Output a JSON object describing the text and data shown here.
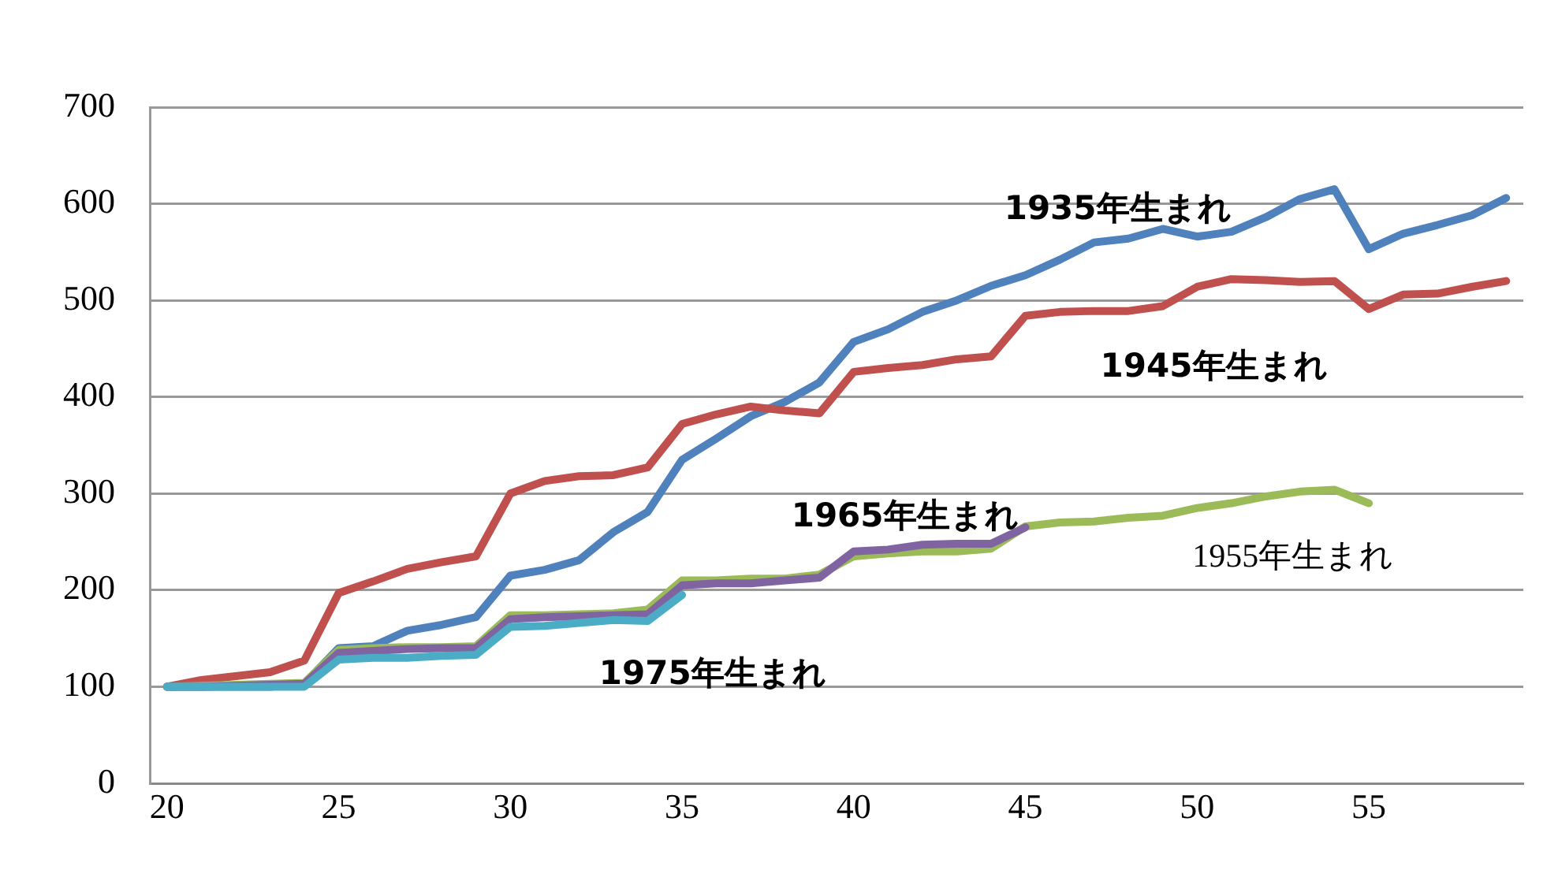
{
  "chart_data": {
    "type": "line",
    "x": [
      20,
      21,
      22,
      23,
      24,
      25,
      26,
      27,
      28,
      29,
      30,
      31,
      32,
      33,
      34,
      35,
      36,
      37,
      38,
      39,
      40,
      41,
      42,
      43,
      44,
      45,
      46,
      47,
      48,
      49,
      50,
      51,
      52,
      53,
      54,
      55,
      56,
      57,
      58,
      59
    ],
    "series": [
      {
        "name": "1935年生まれ",
        "color": "#4f81bd",
        "values": [
          100,
          100,
          100,
          100,
          103,
          140,
          142,
          158,
          164,
          172,
          215,
          221,
          231,
          260,
          281,
          335,
          357,
          380,
          395,
          415,
          457,
          470,
          488,
          500,
          515,
          526,
          542,
          560,
          564,
          574,
          566,
          571,
          586,
          605,
          615,
          553,
          569,
          578,
          588,
          606
        ]
      },
      {
        "name": "1945年生まれ",
        "color": "#c0504d",
        "values": [
          100,
          107,
          111,
          115,
          127,
          197,
          209,
          222,
          229,
          235,
          300,
          313,
          318,
          319,
          327,
          372,
          382,
          390,
          386,
          383,
          426,
          430,
          433,
          439,
          442,
          484,
          488,
          489,
          489,
          494,
          514,
          522,
          521,
          519,
          520,
          491,
          506,
          507,
          514,
          520
        ]
      },
      {
        "name": "1955年生まれ",
        "color": "#9bbb59",
        "x": [
          20,
          21,
          22,
          23,
          24,
          25,
          26,
          27,
          28,
          29,
          30,
          31,
          32,
          33,
          34,
          35,
          36,
          37,
          38,
          39,
          40,
          41,
          42,
          43,
          44,
          45,
          46,
          47,
          48,
          49,
          50,
          51,
          52,
          53,
          54,
          55
        ],
        "values": [
          100,
          101,
          102,
          103,
          104,
          138,
          140,
          141,
          141,
          142,
          174,
          174,
          175,
          176,
          180,
          210,
          210,
          212,
          212,
          216,
          235,
          238,
          240,
          240,
          243,
          266,
          270,
          271,
          275,
          277,
          285,
          290,
          297,
          302,
          304,
          290
        ]
      },
      {
        "name": "1965年生まれ",
        "color": "#8064a2",
        "x": [
          20,
          21,
          22,
          23,
          24,
          25,
          26,
          27,
          28,
          29,
          30,
          31,
          32,
          33,
          34,
          35,
          36,
          37,
          38,
          39,
          40,
          41,
          42,
          43,
          44,
          45
        ],
        "values": [
          100,
          100,
          101,
          102,
          103,
          135,
          137,
          139,
          140,
          140,
          170,
          172,
          173,
          174,
          175,
          205,
          207,
          207,
          210,
          213,
          240,
          242,
          247,
          248,
          248,
          265
        ]
      },
      {
        "name": "1975年生まれ",
        "color": "#4bacc6",
        "x": [
          20,
          21,
          22,
          23,
          24,
          25,
          26,
          27,
          28,
          29,
          30,
          31,
          32,
          33,
          34,
          35
        ],
        "values": [
          100,
          100,
          100,
          100,
          100,
          128,
          130,
          130,
          132,
          133,
          162,
          163,
          166,
          169,
          168,
          195
        ]
      }
    ],
    "xlim": [
      19.5,
      59.5
    ],
    "xticks": [
      20,
      25,
      30,
      35,
      40,
      45,
      50,
      55
    ],
    "ylim": [
      0,
      700
    ],
    "yticks": [
      0,
      100,
      200,
      300,
      400,
      500,
      600,
      700
    ],
    "grid": "y",
    "legend": false,
    "marker": "none",
    "line_style": "solid"
  }
}
